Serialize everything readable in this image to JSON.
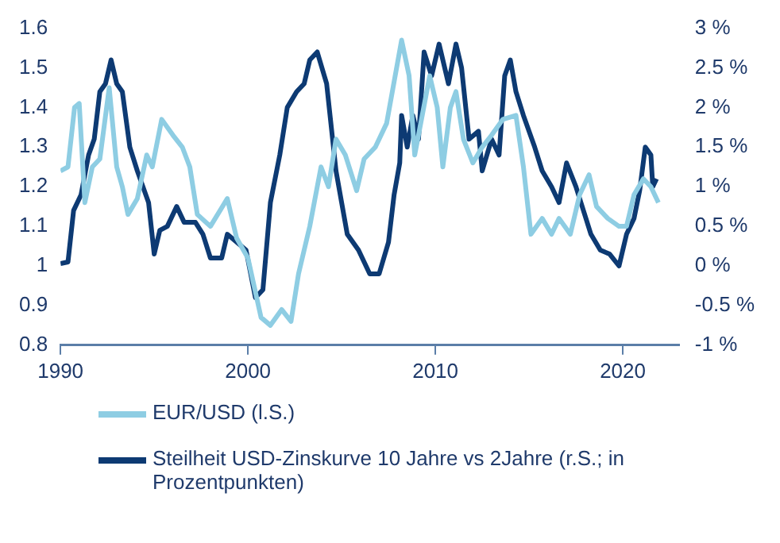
{
  "chart_data": {
    "type": "line",
    "xlim": [
      1990,
      2023
    ],
    "xticks": [
      1990,
      2000,
      2010,
      2020
    ],
    "ylim": [
      0.8,
      1.6
    ],
    "yticks": [
      0.8,
      0.9,
      1,
      1.1,
      1.2,
      1.3,
      1.4,
      1.5,
      1.6
    ],
    "y2lim": [
      -1,
      3
    ],
    "y2ticks": [
      {
        "value": -1,
        "label": "-1 %"
      },
      {
        "value": -0.5,
        "label": "-0.5 %"
      },
      {
        "value": 0,
        "label": "0 %"
      },
      {
        "value": 0.5,
        "label": "0.5 %"
      },
      {
        "value": 1,
        "label": "1 %"
      },
      {
        "value": 1.5,
        "label": "1.5 %"
      },
      {
        "value": 2,
        "label": "2 %"
      },
      {
        "value": 2.5,
        "label": "2.5 %"
      },
      {
        "value": 3,
        "label": "3 %"
      }
    ],
    "grid": false,
    "legend": "bottom",
    "marker": "none",
    "line_style": "solid",
    "series": [
      {
        "name": "EUR/USD (l.S.)",
        "color": "#8ecde3",
        "x": [
          1990,
          1990.4,
          1990.75,
          1991,
          1991.3,
          1991.7,
          1992.1,
          1992.6,
          1993,
          1993.3,
          1993.6,
          1994.1,
          1994.6,
          1994.9,
          1995.4,
          1996,
          1996.5,
          1996.9,
          1997.3,
          1998,
          1998.9,
          1999.4,
          2000,
          2000.7,
          2001.2,
          2001.8,
          2002.3,
          2002.7,
          2003.3,
          2003.9,
          2004.3,
          2004.7,
          2005.2,
          2005.8,
          2006.2,
          2006.8,
          2007.4,
          2008.2,
          2008.6,
          2008.9,
          2009.3,
          2009.7,
          2010.1,
          2010.4,
          2010.8,
          2011.1,
          2011.5,
          2012,
          2012.5,
          2013,
          2013.6,
          2014.3,
          2014.7,
          2015.1,
          2015.7,
          2016.2,
          2016.6,
          2017.2,
          2017.7,
          2018.2,
          2018.6,
          2019.2,
          2019.8,
          2020.2,
          2020.6,
          2021.1,
          2021.5,
          2021.9
        ],
        "values": [
          1.24,
          1.25,
          1.4,
          1.41,
          1.16,
          1.25,
          1.27,
          1.45,
          1.25,
          1.2,
          1.13,
          1.17,
          1.28,
          1.25,
          1.37,
          1.33,
          1.3,
          1.25,
          1.13,
          1.1,
          1.17,
          1.07,
          1.02,
          0.87,
          0.85,
          0.89,
          0.86,
          0.98,
          1.1,
          1.25,
          1.2,
          1.32,
          1.28,
          1.19,
          1.27,
          1.3,
          1.36,
          1.57,
          1.48,
          1.28,
          1.38,
          1.48,
          1.4,
          1.25,
          1.4,
          1.44,
          1.32,
          1.26,
          1.3,
          1.33,
          1.37,
          1.38,
          1.25,
          1.08,
          1.12,
          1.08,
          1.12,
          1.08,
          1.18,
          1.23,
          1.15,
          1.12,
          1.1,
          1.1,
          1.18,
          1.22,
          1.2,
          1.16
        ]
      },
      {
        "name": "Steilheit USD-Zinskurve 10 Jahre vs 2Jahre (r.S.; in Prozentpunkten)",
        "color": "#0d3a73",
        "axis": "y2",
        "x": [
          1990,
          1990.4,
          1990.7,
          1991.1,
          1991.5,
          1991.8,
          1992.1,
          1992.4,
          1992.7,
          1993,
          1993.3,
          1993.7,
          1994.1,
          1994.7,
          1995,
          1995.3,
          1995.7,
          1996.2,
          1996.6,
          1997.2,
          1997.6,
          1998,
          1998.6,
          1998.9,
          1999.4,
          1999.9,
          2000.4,
          2000.8,
          2001.2,
          2001.7,
          2002.1,
          2002.6,
          2003,
          2003.3,
          2003.7,
          2004.2,
          2004.7,
          2005.3,
          2005.9,
          2006.5,
          2007,
          2007.5,
          2007.8,
          2008.1,
          2008.2,
          2008.5,
          2008.8,
          2009.1,
          2009.4,
          2009.8,
          2010.2,
          2010.7,
          2011.1,
          2011.4,
          2011.8,
          2012.3,
          2012.5,
          2013,
          2013.4,
          2013.7,
          2014,
          2014.3,
          2014.7,
          2015.3,
          2015.7,
          2016.2,
          2016.6,
          2017,
          2017.5,
          2017.9,
          2018.3,
          2018.8,
          2019.3,
          2019.8,
          2020.2,
          2020.6,
          2020.9,
          2021.2,
          2021.5,
          2021.6,
          2021.8
        ],
        "values": [
          0.03,
          0.05,
          0.7,
          0.9,
          1.4,
          1.6,
          2.2,
          2.3,
          2.6,
          2.3,
          2.2,
          1.5,
          1.2,
          0.8,
          0.15,
          0.45,
          0.5,
          0.75,
          0.55,
          0.55,
          0.4,
          0.1,
          0.1,
          0.4,
          0.3,
          0.2,
          -0.4,
          -0.3,
          0.8,
          1.4,
          2,
          2.2,
          2.3,
          2.6,
          2.7,
          2.3,
          1.2,
          0.4,
          0.2,
          -0.1,
          -0.1,
          0.3,
          0.9,
          1.3,
          1.9,
          1.5,
          1.9,
          1.6,
          2.7,
          2.4,
          2.8,
          2.3,
          2.8,
          2.5,
          1.6,
          1.7,
          1.2,
          1.6,
          1.4,
          2.4,
          2.6,
          2.2,
          1.9,
          1.5,
          1.2,
          1,
          0.8,
          1.3,
          1,
          0.7,
          0.4,
          0.2,
          0.15,
          0,
          0.4,
          0.6,
          0.95,
          1.5,
          1.4,
          1,
          1.1
        ]
      }
    ]
  }
}
